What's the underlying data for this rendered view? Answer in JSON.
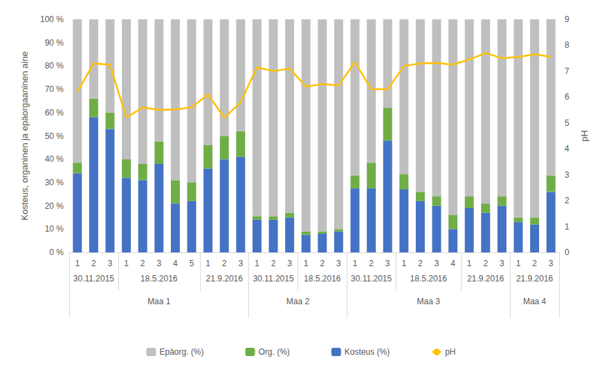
{
  "chart_data": {
    "type": "bar",
    "stacked": true,
    "grid": false,
    "legend": "bottom",
    "y_label": "Kosteus, organinen ja epäorgaaninen aine",
    "y2_label": "pH",
    "categories": [
      "1",
      "2",
      "3",
      "1",
      "2",
      "3",
      "4",
      "5",
      "1",
      "2",
      "3",
      "1",
      "2",
      "3",
      "1",
      "2",
      "3",
      "1",
      "2",
      "3",
      "1",
      "2",
      "3",
      "4",
      "1",
      "2",
      "3",
      "1",
      "2",
      "3"
    ],
    "date_groups": [
      {
        "label": "30.11.2015",
        "count": 3
      },
      {
        "label": "18.5.2016",
        "count": 5
      },
      {
        "label": "21.9.2016",
        "count": 3
      },
      {
        "label": "30.11.2015",
        "count": 3
      },
      {
        "label": "18.5.2016",
        "count": 3
      },
      {
        "label": "30.11.2015",
        "count": 3
      },
      {
        "label": "18.5.2016",
        "count": 4
      },
      {
        "label": "21.9.2016",
        "count": 3
      },
      {
        "label": "21.9.2016",
        "count": 3
      }
    ],
    "soil_groups": [
      {
        "label": "Maa 1",
        "count": 11
      },
      {
        "label": "Maa 2",
        "count": 6
      },
      {
        "label": "Maa 3",
        "count": 10
      },
      {
        "label": "Maa 4",
        "count": 3
      }
    ],
    "ylim": [
      0,
      100
    ],
    "yticks": [
      {
        "value": 0,
        "label": "0 %"
      },
      {
        "value": 10,
        "label": "10 %"
      },
      {
        "value": 20,
        "label": "20 %"
      },
      {
        "value": 30,
        "label": "30 %"
      },
      {
        "value": 40,
        "label": "40 %"
      },
      {
        "value": 50,
        "label": "50 %"
      },
      {
        "value": 60,
        "label": "60 %"
      },
      {
        "value": 70,
        "label": "70 %"
      },
      {
        "value": 80,
        "label": "80 %"
      },
      {
        "value": 90,
        "label": "90 %"
      },
      {
        "value": 100,
        "label": "100 %"
      }
    ],
    "y2lim": [
      0,
      9
    ],
    "y2ticks": [
      0,
      1,
      2,
      3,
      4,
      5,
      6,
      7,
      8,
      9
    ],
    "series": [
      {
        "name": "Epäorg. (%)",
        "type": "bar",
        "color": "#bfbfbf",
        "values": [
          61.5,
          34,
          40,
          60,
          62,
          52.5,
          69,
          70,
          54,
          50,
          48,
          84.5,
          84.5,
          83,
          91,
          91,
          90,
          67,
          61.5,
          38,
          66.5,
          74,
          76,
          84,
          76,
          79,
          76,
          85,
          85,
          67
        ]
      },
      {
        "name": "Org. (%)",
        "type": "bar",
        "color": "#70ad47",
        "values": [
          4.5,
          8,
          7,
          8,
          7,
          9.5,
          10,
          8,
          10,
          10,
          11,
          1.5,
          1.5,
          2,
          1.5,
          1,
          1,
          5.5,
          11,
          14,
          6.5,
          4,
          4,
          6,
          5,
          4,
          4,
          2,
          3,
          7
        ]
      },
      {
        "name": "Kosteus (%)",
        "type": "bar",
        "color": "#4472c4",
        "values": [
          34,
          58,
          53,
          32,
          31,
          38,
          21,
          22,
          36,
          40,
          41,
          14,
          14,
          15,
          7.5,
          8,
          9,
          27.5,
          27.5,
          48,
          27,
          22,
          20,
          10,
          19,
          17,
          20,
          13,
          12,
          26
        ]
      },
      {
        "name": "pH",
        "type": "line",
        "axis": "y2",
        "color": "#ffc000",
        "values": [
          6.2,
          7.3,
          7.25,
          5.2,
          5.6,
          5.5,
          5.52,
          5.6,
          6.1,
          5.2,
          5.8,
          7.15,
          7.0,
          7.1,
          6.4,
          6.5,
          6.45,
          7.35,
          6.3,
          6.3,
          7.2,
          7.3,
          7.32,
          7.25,
          7.45,
          7.7,
          7.5,
          7.55,
          7.65,
          7.55
        ]
      }
    ]
  }
}
